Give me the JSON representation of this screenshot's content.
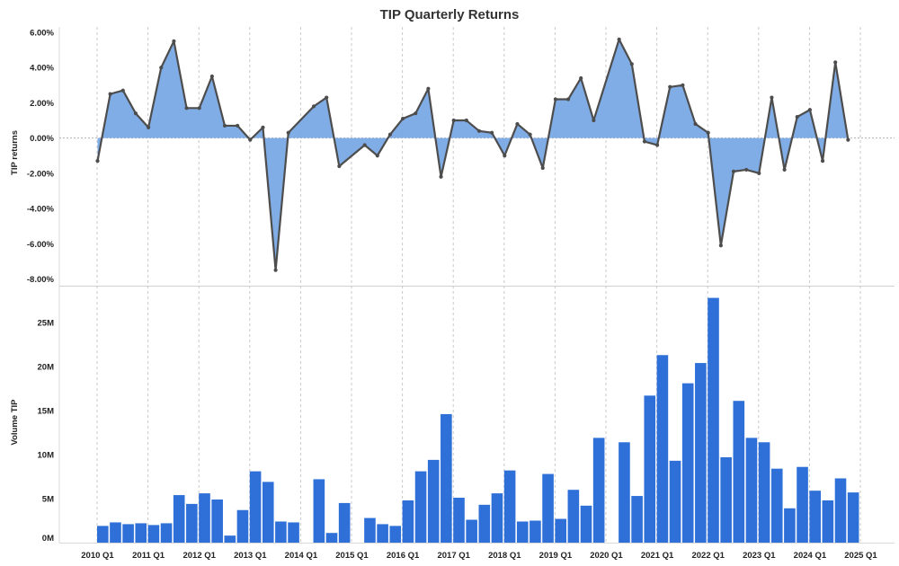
{
  "chart_data": [
    {
      "type": "area",
      "title": "TIP Quarterly Returns",
      "ylabel": "TIP returns",
      "ylim": [
        -8.2,
        6.3
      ],
      "yticks": [
        "6.00%",
        "4.00%",
        "2.00%",
        "0.00%",
        "-2.00%",
        "-4.00%",
        "-6.00%",
        "-8.00%"
      ],
      "ytick_values": [
        6,
        4,
        2,
        0,
        -2,
        -4,
        -6,
        -8
      ],
      "series": [
        {
          "name": "TIP returns",
          "color_line": "#4d4d4d",
          "color_fill_positive": "#7aa9e6",
          "color_fill_negative": "#6a9fe0",
          "points": [
            [
              0,
              -1.3
            ],
            [
              1,
              2.5
            ],
            [
              2,
              2.7
            ],
            [
              3,
              1.4
            ],
            [
              4,
              0.6
            ],
            [
              5,
              4.0
            ],
            [
              6,
              5.5
            ],
            [
              7,
              1.7
            ],
            [
              8,
              1.7
            ],
            [
              9,
              3.5
            ],
            [
              10,
              0.7
            ],
            [
              11,
              0.7
            ],
            [
              12,
              -0.1
            ],
            [
              13,
              0.6
            ],
            [
              14,
              -7.5
            ],
            [
              15,
              0.3
            ],
            [
              17,
              1.8
            ],
            [
              18,
              2.3
            ],
            [
              19,
              -1.6
            ],
            [
              21,
              -0.4
            ],
            [
              22,
              -1.0
            ],
            [
              23,
              0.2
            ],
            [
              24,
              1.1
            ],
            [
              25,
              1.4
            ],
            [
              26,
              2.8
            ],
            [
              27,
              -2.2
            ],
            [
              28,
              1.0
            ],
            [
              29,
              1.0
            ],
            [
              30,
              0.4
            ],
            [
              31,
              0.3
            ],
            [
              32,
              -1.0
            ],
            [
              33,
              0.8
            ],
            [
              34,
              0.2
            ],
            [
              35,
              -1.7
            ],
            [
              36,
              2.2
            ],
            [
              37,
              2.2
            ],
            [
              38,
              3.4
            ],
            [
              39,
              1.0
            ],
            [
              41,
              5.6
            ],
            [
              42,
              4.2
            ],
            [
              43,
              -0.2
            ],
            [
              44,
              -0.4
            ],
            [
              45,
              2.9
            ],
            [
              46,
              3.0
            ],
            [
              47,
              0.8
            ],
            [
              48,
              0.3
            ],
            [
              49,
              -6.1
            ],
            [
              50,
              -1.9
            ],
            [
              51,
              -1.8
            ],
            [
              52,
              -2.0
            ],
            [
              53,
              2.3
            ],
            [
              54,
              -1.8
            ],
            [
              55,
              1.2
            ],
            [
              56,
              1.6
            ],
            [
              57,
              -1.3
            ],
            [
              58,
              4.3
            ],
            [
              59,
              -0.1
            ]
          ]
        }
      ]
    },
    {
      "type": "bar",
      "ylabel": "Volume TIP",
      "ylim": [
        0,
        28
      ],
      "yticks": [
        "25M",
        "20M",
        "15M",
        "10M",
        "5M",
        "0M"
      ],
      "ytick_values": [
        25,
        20,
        15,
        10,
        5,
        0
      ],
      "bar_color": "#2e6fd8",
      "values_millions": [
        1.9,
        2.3,
        2.1,
        2.2,
        2.0,
        2.2,
        5.4,
        4.4,
        5.6,
        4.9,
        0.8,
        3.7,
        8.1,
        6.9,
        2.4,
        2.3,
        0,
        7.2,
        1.1,
        4.5,
        0,
        2.8,
        2.1,
        1.9,
        4.8,
        8.1,
        9.4,
        14.6,
        5.1,
        2.6,
        4.3,
        5.6,
        8.2,
        2.4,
        2.5,
        7.8,
        2.7,
        6.0,
        4.2,
        11.9,
        0,
        11.4,
        5.3,
        16.7,
        21.3,
        9.3,
        18.1,
        20.4,
        27.8,
        9.7,
        16.1,
        11.9,
        11.4,
        8.4,
        3.9,
        8.6,
        5.9,
        4.8,
        7.3,
        5.7
      ]
    }
  ],
  "x_axis": {
    "categories_count": 60,
    "tick_labels": [
      "2010 Q1",
      "2011 Q1",
      "2012 Q1",
      "2013 Q1",
      "2014 Q1",
      "2015 Q1",
      "2016 Q1",
      "2017 Q1",
      "2018 Q1",
      "2019 Q1",
      "2020 Q1",
      "2021 Q1",
      "2022 Q1",
      "2023 Q1",
      "2024 Q1",
      "2025 Q1"
    ],
    "tick_indices": [
      0,
      4,
      8,
      12,
      16,
      20,
      24,
      28,
      32,
      36,
      40,
      44,
      48,
      52,
      56,
      60
    ]
  }
}
